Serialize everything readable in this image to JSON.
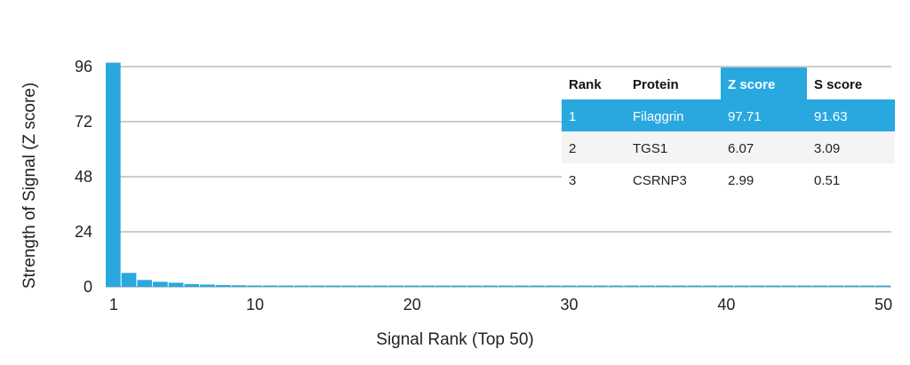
{
  "chart_data": {
    "type": "bar",
    "xlabel": "Signal Rank (Top 50)",
    "ylabel": "Strength of Signal (Z score)",
    "ylim": [
      0,
      96
    ],
    "yticks": [
      0,
      24,
      48,
      72,
      96
    ],
    "xticks": [
      1,
      10,
      20,
      30,
      40,
      50
    ],
    "grid": true,
    "bar_color": "#29a8e0",
    "x": [
      1,
      2,
      3,
      4,
      5,
      6,
      7,
      8,
      9,
      10,
      11,
      12,
      13,
      14,
      15,
      16,
      17,
      18,
      19,
      20,
      21,
      22,
      23,
      24,
      25,
      26,
      27,
      28,
      29,
      30,
      31,
      32,
      33,
      34,
      35,
      36,
      37,
      38,
      39,
      40,
      41,
      42,
      43,
      44,
      45,
      46,
      47,
      48,
      49,
      50
    ],
    "values": [
      97.71,
      6.07,
      2.99,
      2.2,
      1.8,
      1.2,
      1.0,
      0.8,
      0.7,
      0.6,
      0.6,
      0.5,
      0.5,
      0.5,
      0.5,
      0.5,
      0.5,
      0.5,
      0.5,
      0.5,
      0.5,
      0.5,
      0.5,
      0.5,
      0.5,
      0.5,
      0.5,
      0.5,
      0.5,
      0.5,
      0.5,
      0.5,
      0.5,
      0.5,
      0.5,
      0.5,
      0.5,
      0.5,
      0.5,
      0.5,
      0.5,
      0.5,
      0.5,
      0.5,
      0.5,
      0.5,
      0.5,
      0.5,
      0.5,
      0.5
    ]
  },
  "table": {
    "headers": [
      "Rank",
      "Protein",
      "Z score",
      "S score"
    ],
    "highlight_color": "#29a8e0",
    "rows": [
      [
        "1",
        "Filaggrin",
        "97.71",
        "91.63"
      ],
      [
        "2",
        "TGS1",
        "6.07",
        "3.09"
      ],
      [
        "3",
        "CSRNP3",
        "2.99",
        "0.51"
      ]
    ]
  }
}
